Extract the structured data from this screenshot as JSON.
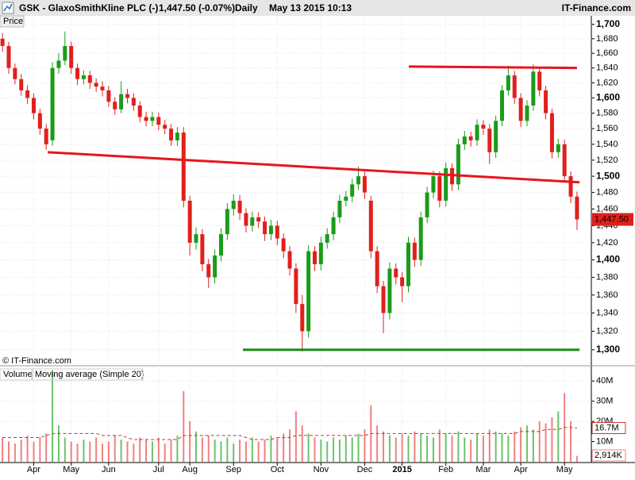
{
  "header": {
    "symbol": "GSK - GlaxoSmithKline PLC (-)",
    "quote": "1,447.50 (-0.07%)",
    "period": "Daily",
    "timestamp": "May 13 2015 10:13",
    "brand": "IT-Finance.com"
  },
  "chart_data": [
    {
      "type": "candlestick",
      "pane_label": "Price",
      "copyright": "© IT-Finance.com",
      "log_scale": true,
      "grid": true,
      "up_color": "#1a9c1a",
      "down_color": "#e0201c",
      "xlim": [
        -0.4,
        94.3
      ],
      "ylim": [
        1285.5,
        1712
      ],
      "open": [
        1680,
        1670,
        1640,
        1625,
        1610,
        1600,
        1580,
        1560,
        1545,
        1640,
        1650,
        1670,
        1640,
        1625,
        1630,
        1620,
        1615,
        1610,
        1595,
        1585,
        1605,
        1600,
        1590,
        1575,
        1570,
        1575,
        1565,
        1560,
        1545,
        1555,
        1470,
        1420,
        1430,
        1395,
        1380,
        1405,
        1430,
        1460,
        1470,
        1455,
        1440,
        1450,
        1445,
        1430,
        1440,
        1425,
        1410,
        1390,
        1350,
        1320,
        1410,
        1395,
        1420,
        1430,
        1450,
        1470,
        1475,
        1490,
        1500,
        1470,
        1410,
        1370,
        1340,
        1390,
        1380,
        1370,
        1420,
        1400,
        1450,
        1480,
        1500,
        1470,
        1510,
        1490,
        1540,
        1550,
        1545,
        1565,
        1560,
        1530,
        1570,
        1610,
        1630,
        1600,
        1570,
        1590,
        1635,
        1610,
        1580,
        1530,
        1540,
        1500,
        1475
      ],
      "high": [
        1688,
        1676,
        1646,
        1632,
        1617,
        1606,
        1586,
        1566,
        1648,
        1660,
        1690,
        1676,
        1646,
        1637,
        1636,
        1626,
        1622,
        1616,
        1601,
        1622,
        1612,
        1606,
        1596,
        1582,
        1582,
        1581,
        1571,
        1566,
        1562,
        1562,
        1476,
        1438,
        1436,
        1401,
        1412,
        1437,
        1467,
        1478,
        1477,
        1461,
        1457,
        1456,
        1451,
        1447,
        1446,
        1431,
        1416,
        1396,
        1360,
        1417,
        1416,
        1427,
        1437,
        1457,
        1477,
        1482,
        1497,
        1512,
        1506,
        1476,
        1416,
        1376,
        1397,
        1396,
        1386,
        1427,
        1426,
        1457,
        1487,
        1507,
        1506,
        1517,
        1516,
        1547,
        1557,
        1556,
        1572,
        1571,
        1566,
        1577,
        1617,
        1643,
        1636,
        1606,
        1597,
        1645,
        1642,
        1616,
        1586,
        1547,
        1546,
        1506,
        1481
      ],
      "low": [
        1662,
        1632,
        1618,
        1603,
        1592,
        1572,
        1552,
        1533,
        1538,
        1632,
        1644,
        1632,
        1617,
        1618,
        1612,
        1608,
        1602,
        1588,
        1578,
        1580,
        1593,
        1583,
        1568,
        1563,
        1563,
        1558,
        1553,
        1538,
        1538,
        1462,
        1405,
        1412,
        1387,
        1368,
        1373,
        1398,
        1423,
        1452,
        1447,
        1432,
        1433,
        1437,
        1422,
        1423,
        1417,
        1402,
        1382,
        1340,
        1298,
        1313,
        1387,
        1388,
        1413,
        1423,
        1443,
        1463,
        1468,
        1483,
        1472,
        1402,
        1362,
        1318,
        1333,
        1372,
        1352,
        1363,
        1392,
        1393,
        1443,
        1473,
        1462,
        1463,
        1482,
        1483,
        1533,
        1537,
        1538,
        1552,
        1515,
        1523,
        1563,
        1603,
        1592,
        1562,
        1563,
        1583,
        1602,
        1572,
        1522,
        1523,
        1492,
        1467,
        1435
      ],
      "close": [
        1670,
        1640,
        1625,
        1610,
        1600,
        1580,
        1560,
        1540,
        1640,
        1650,
        1670,
        1640,
        1625,
        1630,
        1620,
        1615,
        1610,
        1595,
        1585,
        1605,
        1600,
        1590,
        1575,
        1570,
        1575,
        1565,
        1560,
        1545,
        1555,
        1470,
        1420,
        1430,
        1395,
        1380,
        1405,
        1430,
        1460,
        1470,
        1455,
        1440,
        1450,
        1445,
        1430,
        1440,
        1425,
        1410,
        1390,
        1350,
        1320,
        1410,
        1395,
        1420,
        1430,
        1450,
        1470,
        1475,
        1490,
        1500,
        1480,
        1410,
        1370,
        1340,
        1390,
        1380,
        1370,
        1420,
        1400,
        1450,
        1480,
        1500,
        1470,
        1510,
        1490,
        1540,
        1550,
        1545,
        1565,
        1560,
        1530,
        1570,
        1610,
        1630,
        1600,
        1570,
        1590,
        1635,
        1610,
        1580,
        1530,
        1540,
        1500,
        1475,
        1447.5
      ],
      "last_price": 1447.5,
      "last_price_label": "1,447.50",
      "yticks": [
        {
          "value": 1300,
          "label": "1,300"
        },
        {
          "value": 1320,
          "label": "1,320"
        },
        {
          "value": 1340,
          "label": "1,340"
        },
        {
          "value": 1360,
          "label": "1,360"
        },
        {
          "value": 1380,
          "label": "1,380"
        },
        {
          "value": 1400,
          "label": "1,400"
        },
        {
          "value": 1420,
          "label": "1,420"
        },
        {
          "value": 1440,
          "label": "1,440"
        },
        {
          "value": 1460,
          "label": "1,460"
        },
        {
          "value": 1480,
          "label": "1,480"
        },
        {
          "value": 1500,
          "label": "1,500"
        },
        {
          "value": 1520,
          "label": "1,520"
        },
        {
          "value": 1540,
          "label": "1,540"
        },
        {
          "value": 1560,
          "label": "1,560"
        },
        {
          "value": 1580,
          "label": "1,580"
        },
        {
          "value": 1600,
          "label": "1,600"
        },
        {
          "value": 1620,
          "label": "1,620"
        },
        {
          "value": 1640,
          "label": "1,640"
        },
        {
          "value": 1660,
          "label": "1,660"
        },
        {
          "value": 1680,
          "label": "1,680"
        },
        {
          "value": 1700,
          "label": "1,700"
        }
      ],
      "xticks": [
        {
          "value": 5,
          "label": "Apr"
        },
        {
          "value": 11,
          "label": "May"
        },
        {
          "value": 17,
          "label": "Jun"
        },
        {
          "value": 25,
          "label": "Jul"
        },
        {
          "value": 30,
          "label": "Aug"
        },
        {
          "value": 37,
          "label": "Sep"
        },
        {
          "value": 44,
          "label": "Oct"
        },
        {
          "value": 51,
          "label": "Nov"
        },
        {
          "value": 58,
          "label": "Dec"
        },
        {
          "value": 64,
          "label": "2015"
        },
        {
          "value": 71,
          "label": "Feb"
        },
        {
          "value": 77,
          "label": "Mar"
        },
        {
          "value": 83,
          "label": "Apr"
        },
        {
          "value": 90,
          "label": "May"
        }
      ],
      "trendlines": [
        {
          "color": "#e8151b",
          "x": [
            65.06,
            92
          ],
          "y": [
            1642,
            1640
          ]
        },
        {
          "color": "#e8151b",
          "x": [
            7.24,
            92.4
          ],
          "y": [
            1530,
            1492.5
          ]
        },
        {
          "color": "#1a8a1a",
          "x": [
            38.5,
            92.4
          ],
          "y": [
            1300,
            1300
          ]
        }
      ]
    },
    {
      "type": "bar",
      "pane_label": "Volume",
      "xlim": [
        -0.4,
        94.3
      ],
      "ylim": [
        0,
        46
      ],
      "series": [
        {
          "name": "Volume",
          "values": [
            12,
            10,
            9,
            11,
            13,
            10,
            12,
            14,
            45,
            18,
            12,
            10,
            9,
            11,
            10,
            12,
            9,
            10,
            13,
            11,
            10,
            9,
            12,
            11,
            10,
            12,
            9,
            11,
            13,
            35,
            20,
            15,
            12,
            13,
            11,
            10,
            12,
            9,
            11,
            10,
            12,
            10,
            11,
            13,
            12,
            14,
            16,
            25,
            18,
            14,
            12,
            11,
            10,
            12,
            11,
            13,
            12,
            14,
            16,
            28,
            18,
            15,
            13,
            12,
            14,
            13,
            15,
            14,
            13,
            12,
            16,
            14,
            13,
            15,
            12,
            11,
            14,
            13,
            16,
            15,
            14,
            13,
            15,
            17,
            18,
            16,
            20,
            19,
            22,
            25,
            34,
            20,
            2.914
          ],
          "last_label": "2,914K",
          "color": "#f08080"
        },
        {
          "name": "Moving average (Simple 20)",
          "color": "#c0392b",
          "values": [
            12,
            12,
            12,
            12,
            12,
            12,
            12,
            13,
            14,
            14,
            14,
            14,
            14,
            14,
            14,
            14,
            13,
            13,
            13,
            13,
            12,
            11,
            11,
            11,
            11,
            11,
            11,
            11,
            11,
            13,
            13,
            13,
            13,
            13,
            13,
            13,
            13,
            13,
            13,
            12,
            11,
            11,
            11,
            11,
            12,
            12,
            12,
            13,
            13,
            13,
            13,
            13,
            13,
            13,
            13,
            13,
            13,
            13,
            13,
            14,
            14,
            14,
            14,
            14,
            14,
            14,
            14,
            14,
            14,
            14,
            14,
            14,
            14,
            14,
            14,
            14,
            14,
            14,
            14,
            14,
            14,
            14,
            14,
            15,
            15,
            15,
            15,
            16,
            16,
            16,
            17,
            17,
            16.7
          ],
          "last_label": "16.7M"
        }
      ],
      "yticks": [
        {
          "value": 10,
          "label": "10M"
        },
        {
          "value": 20,
          "label": "20M"
        },
        {
          "value": 30,
          "label": "30M"
        },
        {
          "value": 40,
          "label": "40M"
        }
      ]
    }
  ]
}
